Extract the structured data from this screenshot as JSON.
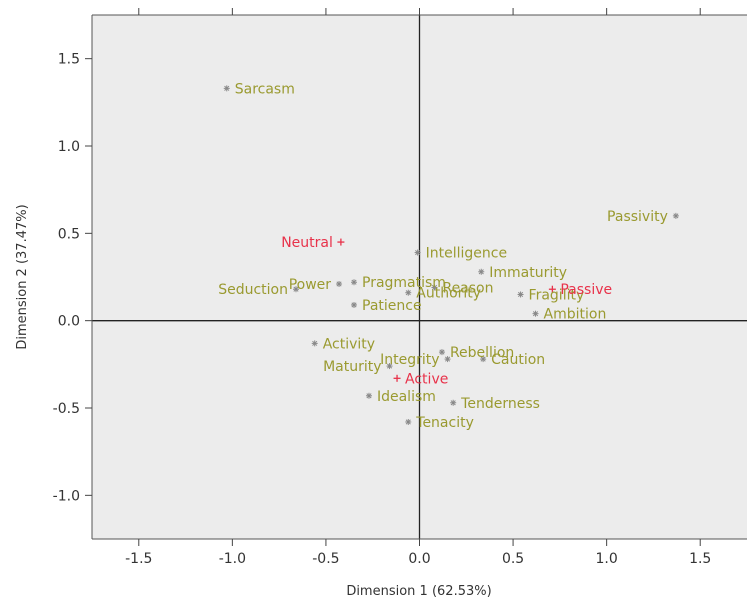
{
  "chart_data": {
    "type": "scatter",
    "title": "",
    "xlabel": "Dimension 1 (62.53%)",
    "ylabel": "Dimension 2 (37.47%)",
    "xlim": [
      -1.75,
      1.75
    ],
    "ylim": [
      -1.25,
      1.75
    ],
    "xticks": [
      -1.5,
      -1.0,
      -0.5,
      0.0,
      0.5,
      1.0,
      1.5
    ],
    "xtick_labels": [
      "-1.5",
      "-1.0",
      "-0.5",
      "0.0",
      "0.5",
      "1.0",
      "1.5"
    ],
    "yticks": [
      -1.0,
      -0.5,
      0.0,
      0.5,
      1.0,
      1.5
    ],
    "ytick_labels": [
      "-1.0",
      "-0.5",
      "0.0",
      "0.5",
      "1.0",
      "1.5"
    ],
    "grid": false,
    "reference_lines": {
      "x": 0,
      "y": 0
    },
    "colors": {
      "background": "#ececec",
      "concept": "#9a9a30",
      "concept_marker": "#888888",
      "category": "#e8324a"
    },
    "series": [
      {
        "marker": "*",
        "color": "#9a9a30",
        "points": [
          {
            "label": "Sarcasm",
            "x": -1.03,
            "y": 1.33
          },
          {
            "label": "Passivity",
            "x": 1.37,
            "y": 0.6
          },
          {
            "label": "Intelligence",
            "x": -0.01,
            "y": 0.39
          },
          {
            "label": "Pragmatism",
            "x": -0.35,
            "y": 0.22
          },
          {
            "label": "Immaturity",
            "x": 0.33,
            "y": 0.28
          },
          {
            "label": "Seduction",
            "x": -0.66,
            "y": 0.18
          },
          {
            "label": "Reason",
            "x": 0.08,
            "y": 0.19
          },
          {
            "label": "Fragility",
            "x": 0.54,
            "y": 0.15
          },
          {
            "label": "Power",
            "x": -0.43,
            "y": 0.21
          },
          {
            "label": "Patience",
            "x": -0.35,
            "y": 0.09
          },
          {
            "label": "Authority",
            "x": -0.06,
            "y": 0.16
          },
          {
            "label": "Ambition",
            "x": 0.62,
            "y": 0.04
          },
          {
            "label": "Activity",
            "x": -0.56,
            "y": -0.13
          },
          {
            "label": "Rebellion",
            "x": 0.12,
            "y": -0.18
          },
          {
            "label": "Integrity",
            "x": 0.15,
            "y": -0.22
          },
          {
            "label": "Caution",
            "x": 0.34,
            "y": -0.22
          },
          {
            "label": "Maturity",
            "x": -0.16,
            "y": -0.26
          },
          {
            "label": "Idealism",
            "x": -0.27,
            "y": -0.43
          },
          {
            "label": "Tenderness",
            "x": 0.18,
            "y": -0.47
          },
          {
            "label": "Tenacity",
            "x": -0.06,
            "y": -0.58
          }
        ]
      },
      {
        "marker": "+",
        "color": "#e8324a",
        "points": [
          {
            "label": "Neutral",
            "x": -0.42,
            "y": 0.45
          },
          {
            "label": "Passive",
            "x": 0.71,
            "y": 0.18
          },
          {
            "label": "Active",
            "x": -0.12,
            "y": -0.33
          }
        ]
      }
    ]
  }
}
